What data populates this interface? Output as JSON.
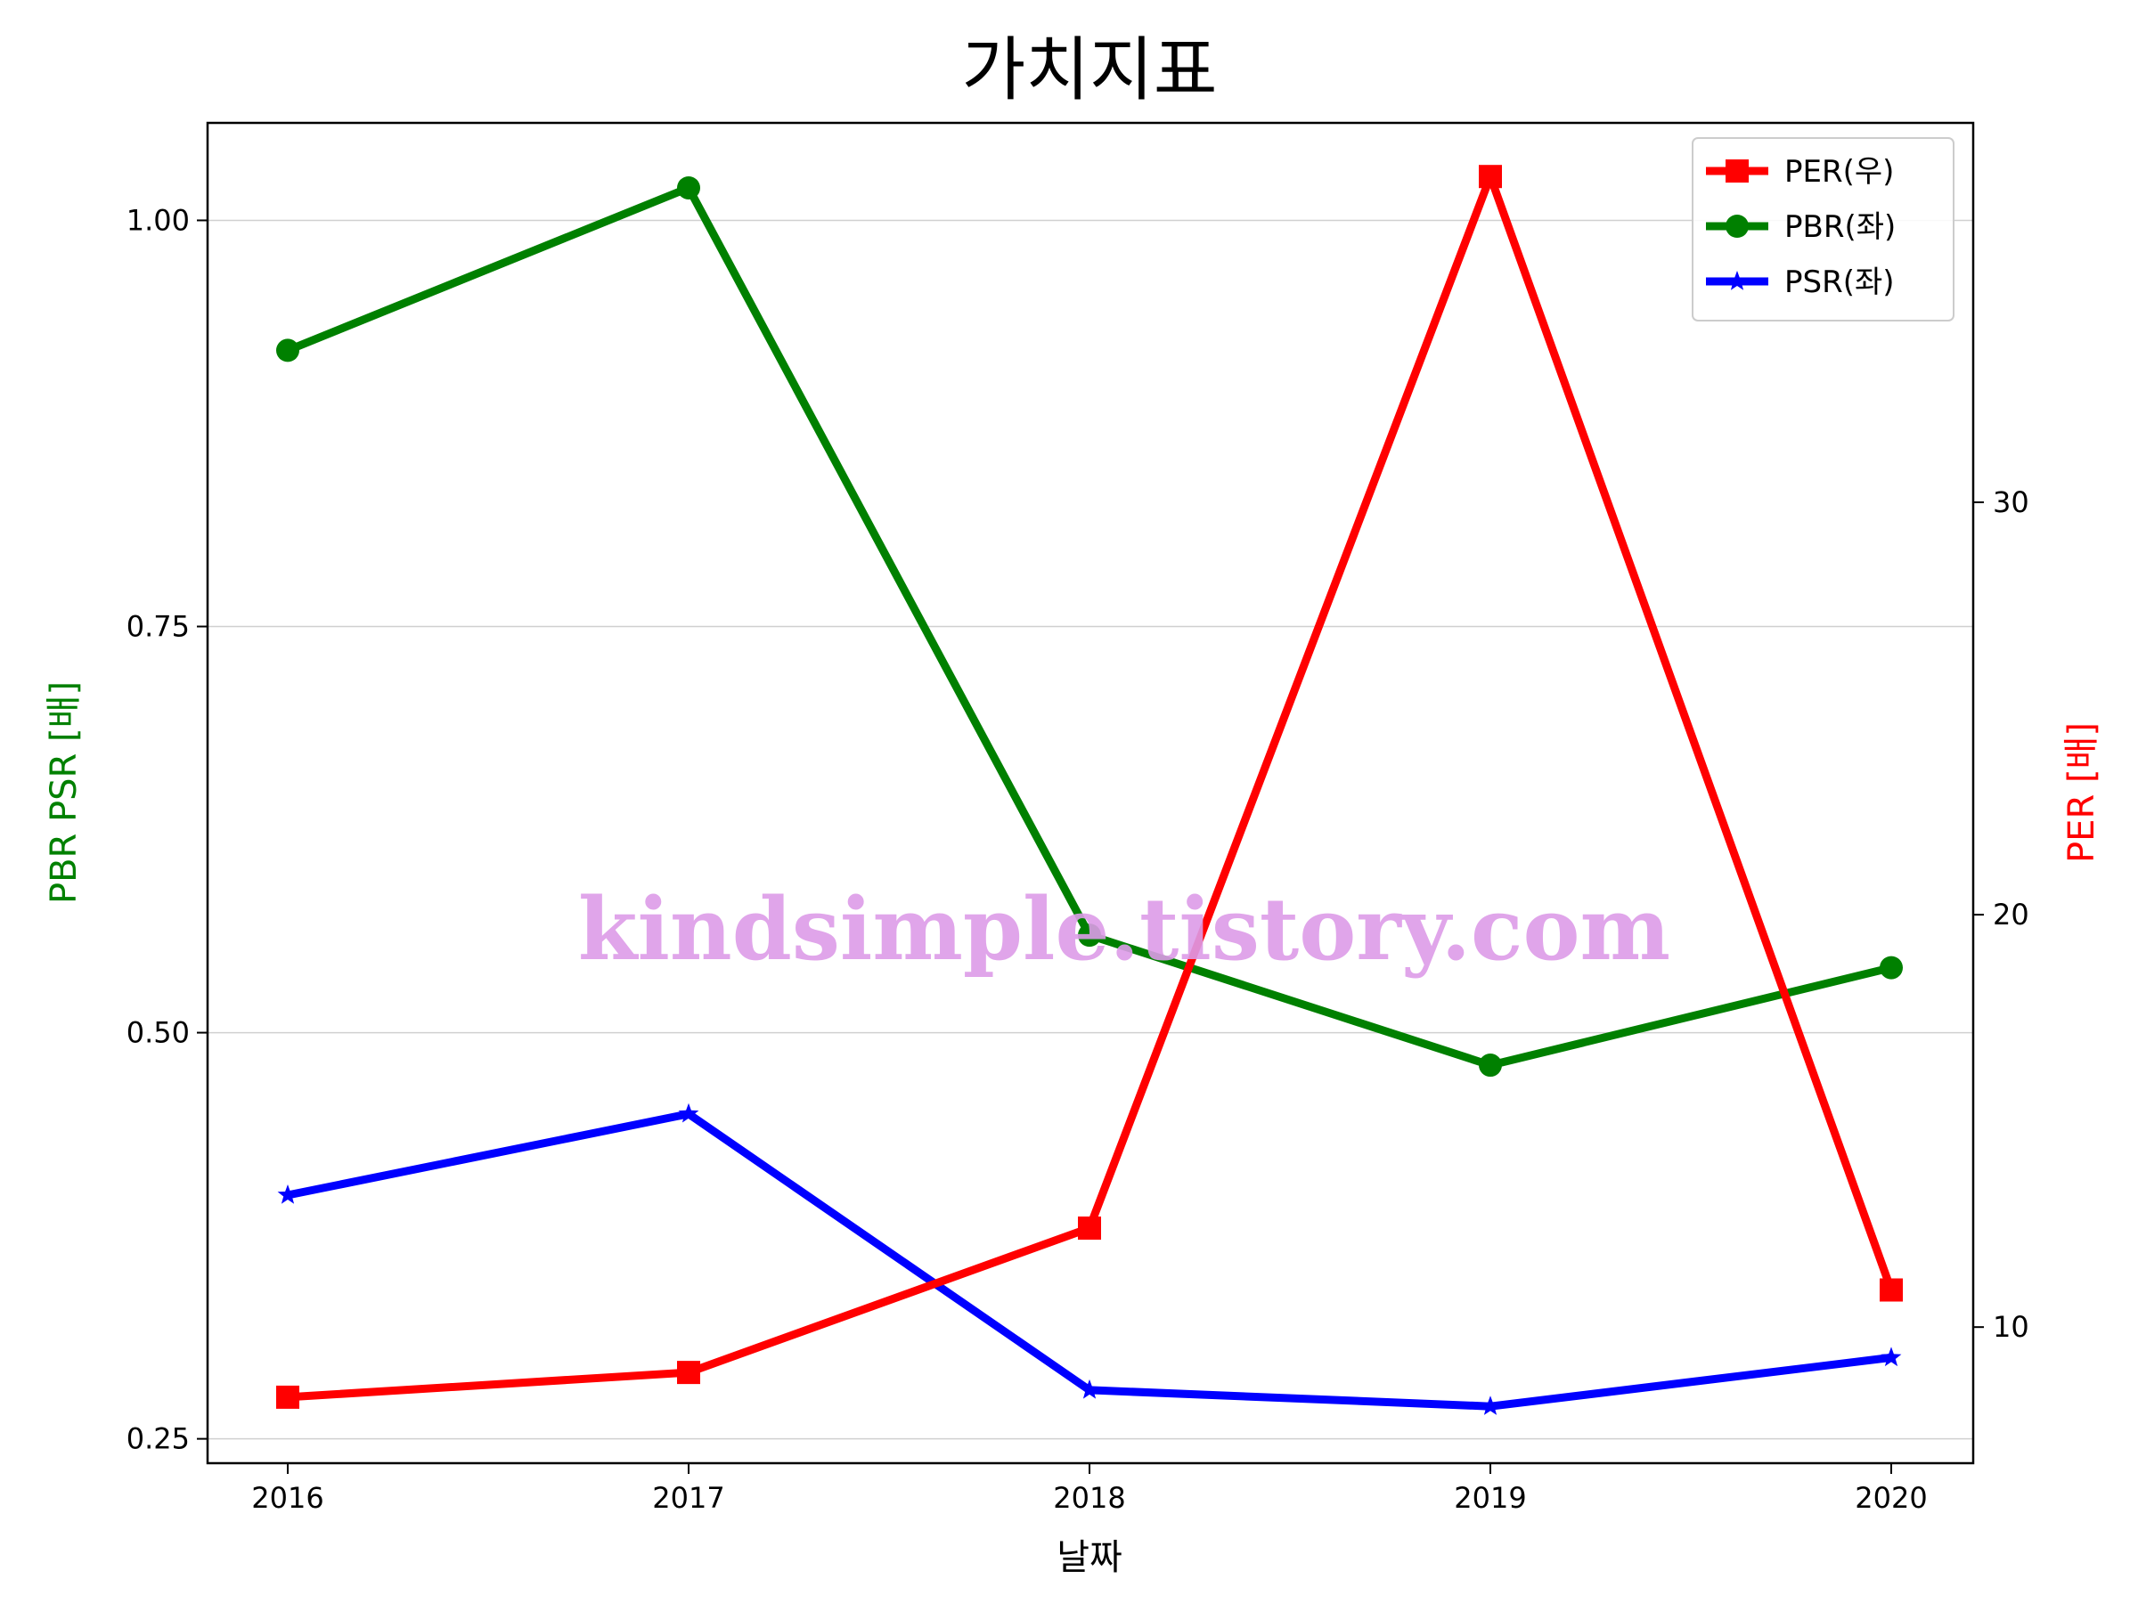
{
  "chart_data": {
    "type": "line",
    "title": "가치지표",
    "xlabel": "날짜",
    "ylabel_left": "PBR PSR [배]",
    "ylabel_right": "PER [배]",
    "categories": [
      "2016",
      "2017",
      "2018",
      "2019",
      "2020"
    ],
    "left_axis": {
      "ylim": [
        0.235,
        1.06
      ],
      "ticks": [
        0.25,
        0.5,
        0.75,
        1.0
      ],
      "tick_labels": [
        "0.25",
        "0.50",
        "0.75",
        "1.00"
      ],
      "grid": true
    },
    "right_axis": {
      "ylim": [
        6.7,
        39.2
      ],
      "ticks": [
        10,
        20,
        30
      ],
      "tick_labels": [
        "10",
        "20",
        "30"
      ]
    },
    "series": [
      {
        "name": "PER(우)",
        "axis": "right",
        "color": "#ff0000",
        "marker": "square",
        "values": [
          8.3,
          8.9,
          12.4,
          37.9,
          10.9
        ]
      },
      {
        "name": "PBR(좌)",
        "axis": "left",
        "color": "#008000",
        "marker": "circle",
        "values": [
          0.92,
          1.02,
          0.56,
          0.48,
          0.54
        ]
      },
      {
        "name": "PSR(좌)",
        "axis": "left",
        "color": "#0000ff",
        "marker": "star",
        "values": [
          0.4,
          0.45,
          0.28,
          0.27,
          0.3
        ]
      }
    ],
    "legend_position": "top-right",
    "watermark": "kindsimple.tistory.com"
  }
}
